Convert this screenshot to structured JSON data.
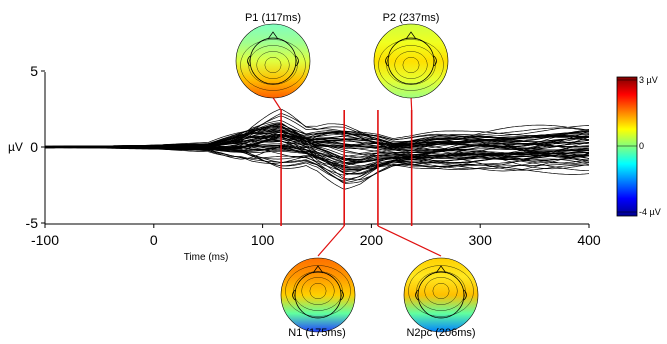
{
  "chart_data": {
    "type": "line",
    "title": "",
    "xlabel": "Time (ms)",
    "ylabel": "µV",
    "xlim": [
      -100,
      400
    ],
    "ylim": [
      -5,
      5
    ],
    "x_ticks": [
      "-100",
      "0",
      "100",
      "200",
      "300",
      "400"
    ],
    "y_ticks": [
      "5",
      "0",
      "-5"
    ],
    "x_tick_values": [
      -100,
      0,
      100,
      200,
      300,
      400
    ],
    "y_tick_values": [
      5,
      0,
      -5
    ],
    "series_color": "#000000",
    "marker_color": "#e01010",
    "grid": false,
    "envelope_approx": {
      "x": [
        -100,
        -50,
        0,
        50,
        70,
        90,
        117,
        140,
        160,
        175,
        190,
        206,
        220,
        237,
        260,
        300,
        340,
        370,
        400
      ],
      "upper": [
        0.1,
        0.1,
        0.2,
        0.4,
        1.2,
        2.0,
        2.5,
        1.6,
        2.1,
        2.3,
        2.0,
        1.5,
        1.0,
        1.2,
        1.5,
        1.7,
        1.8,
        2.0,
        2.2
      ],
      "lower": [
        -0.1,
        -0.1,
        -0.2,
        -0.4,
        -1.0,
        -1.5,
        -1.7,
        -1.5,
        -2.4,
        -3.0,
        -2.8,
        -2.2,
        -1.8,
        -2.0,
        -2.1,
        -2.0,
        -2.2,
        -2.3,
        -2.4
      ]
    },
    "n_traces": 64,
    "annotations": [
      {
        "id": "p1",
        "label": "P1 (117ms)",
        "time": 117
      },
      {
        "id": "n1",
        "label": "N1 (175ms)",
        "time": 175
      },
      {
        "id": "n2pc",
        "label": "N2pc (206ms)",
        "time": 206
      },
      {
        "id": "p2",
        "label": "P2 (237ms)",
        "time": 237
      }
    ],
    "colorbar": {
      "labels": [
        "3 µV",
        "0",
        "-4 µV"
      ],
      "values": [
        3,
        0,
        -4
      ],
      "colors": [
        "#00008f",
        "#0000ff",
        "#0080ff",
        "#00ffff",
        "#80ff80",
        "#ffff00",
        "#ff8000",
        "#ff0000",
        "#800000"
      ]
    }
  }
}
